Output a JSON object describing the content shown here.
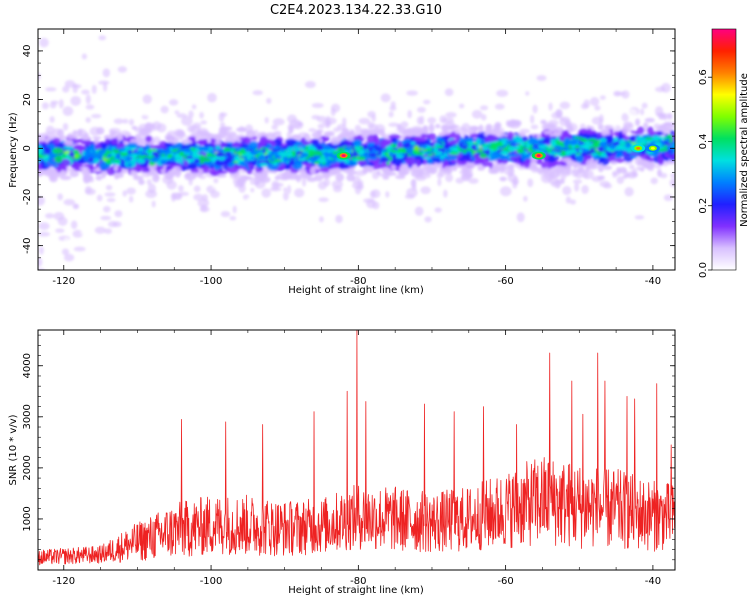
{
  "figure": {
    "title": "C2E4.2023.134.22.33.G10"
  },
  "chart_data": [
    {
      "type": "heatmap",
      "xlabel": "Height of straight line (km)",
      "ylabel": "Frequency (Hz)",
      "xlim": [
        -123.5,
        -37
      ],
      "ylim": [
        -50,
        49
      ],
      "xticks": [
        -120,
        -100,
        -80,
        -60,
        -40
      ],
      "xtick_labels": [
        "-120",
        "-100",
        "-80",
        "-60",
        "-40"
      ],
      "yticks": [
        -40,
        -20,
        0,
        20,
        40
      ],
      "ytick_labels": [
        "-40",
        "-20",
        "0",
        "20",
        "40"
      ],
      "grid": false,
      "ridge": {
        "x": [
          -123,
          -110,
          -100,
          -90,
          -80,
          -70,
          -60,
          -50,
          -40,
          -37
        ],
        "freq": [
          -3,
          -3,
          -3,
          -3,
          -2,
          -1,
          0,
          0,
          1,
          1
        ]
      },
      "peaks": [
        {
          "x": -82,
          "freq": -3,
          "amplitude": 0.72
        },
        {
          "x": -55.5,
          "freq": -3,
          "amplitude": 0.72
        },
        {
          "x": -42,
          "freq": 0,
          "amplitude": 0.6
        },
        {
          "x": -40,
          "freq": 0,
          "amplitude": 0.55
        }
      ],
      "colorbar": {
        "label": "Normalized spectral amplitude",
        "range": [
          0,
          0.75
        ],
        "ticks": [
          0.0,
          0.2,
          0.4,
          0.6
        ],
        "tick_labels": [
          "0.0",
          "0.2",
          "0.4",
          "0.6"
        ],
        "colors": [
          "#ffffff",
          "#d8c0ff",
          "#8030ff",
          "#2020ff",
          "#0080ff",
          "#00e0e0",
          "#00e060",
          "#80ff00",
          "#ffff00",
          "#ff8000",
          "#ff2000",
          "#ff0080"
        ]
      }
    },
    {
      "type": "line",
      "xlabel": "Height of straight line (km)",
      "ylabel": "SNR (10 * v/v)",
      "xlim": [
        -123.5,
        -37
      ],
      "ylim": [
        0,
        4700
      ],
      "xticks": [
        -120,
        -100,
        -80,
        -60,
        -40
      ],
      "xtick_labels": [
        "-120",
        "-100",
        "-80",
        "-60",
        "-40"
      ],
      "yticks": [
        1000,
        2000,
        3000,
        4000
      ],
      "ytick_labels": [
        "1000",
        "2000",
        "3000",
        "4000"
      ],
      "grid": false,
      "series": [
        {
          "color": "#ee2222",
          "envelope_x": [
            -123.5,
            -115,
            -111,
            -105,
            -100,
            -95,
            -90,
            -85,
            -80,
            -75,
            -70,
            -65,
            -60,
            -55,
            -50,
            -45,
            -40,
            -37
          ],
          "baseline": [
            200,
            250,
            400,
            600,
            700,
            700,
            650,
            700,
            850,
            800,
            750,
            800,
            950,
            1100,
            1000,
            950,
            850,
            850
          ],
          "amplitude": [
            300,
            350,
            700,
            1100,
            1200,
            1200,
            1100,
            1100,
            1300,
            1300,
            1200,
            1300,
            1500,
            1800,
            1700,
            1600,
            1400,
            1300
          ],
          "spikes": [
            {
              "x": -104,
              "y": 2950
            },
            {
              "x": -98,
              "y": 2900
            },
            {
              "x": -93,
              "y": 2850
            },
            {
              "x": -86,
              "y": 3100
            },
            {
              "x": -81.5,
              "y": 3500
            },
            {
              "x": -80.2,
              "y": 4700
            },
            {
              "x": -79,
              "y": 3300
            },
            {
              "x": -71,
              "y": 3250
            },
            {
              "x": -67,
              "y": 3100
            },
            {
              "x": -63,
              "y": 3200
            },
            {
              "x": -58.5,
              "y": 2850
            },
            {
              "x": -54,
              "y": 4250
            },
            {
              "x": -51,
              "y": 3700
            },
            {
              "x": -49.5,
              "y": 3050
            },
            {
              "x": -47.5,
              "y": 4250
            },
            {
              "x": -46.5,
              "y": 3700
            },
            {
              "x": -43.5,
              "y": 3400
            },
            {
              "x": -42.5,
              "y": 3350
            },
            {
              "x": -39.5,
              "y": 3650
            },
            {
              "x": -37.5,
              "y": 2450
            }
          ]
        }
      ]
    }
  ]
}
